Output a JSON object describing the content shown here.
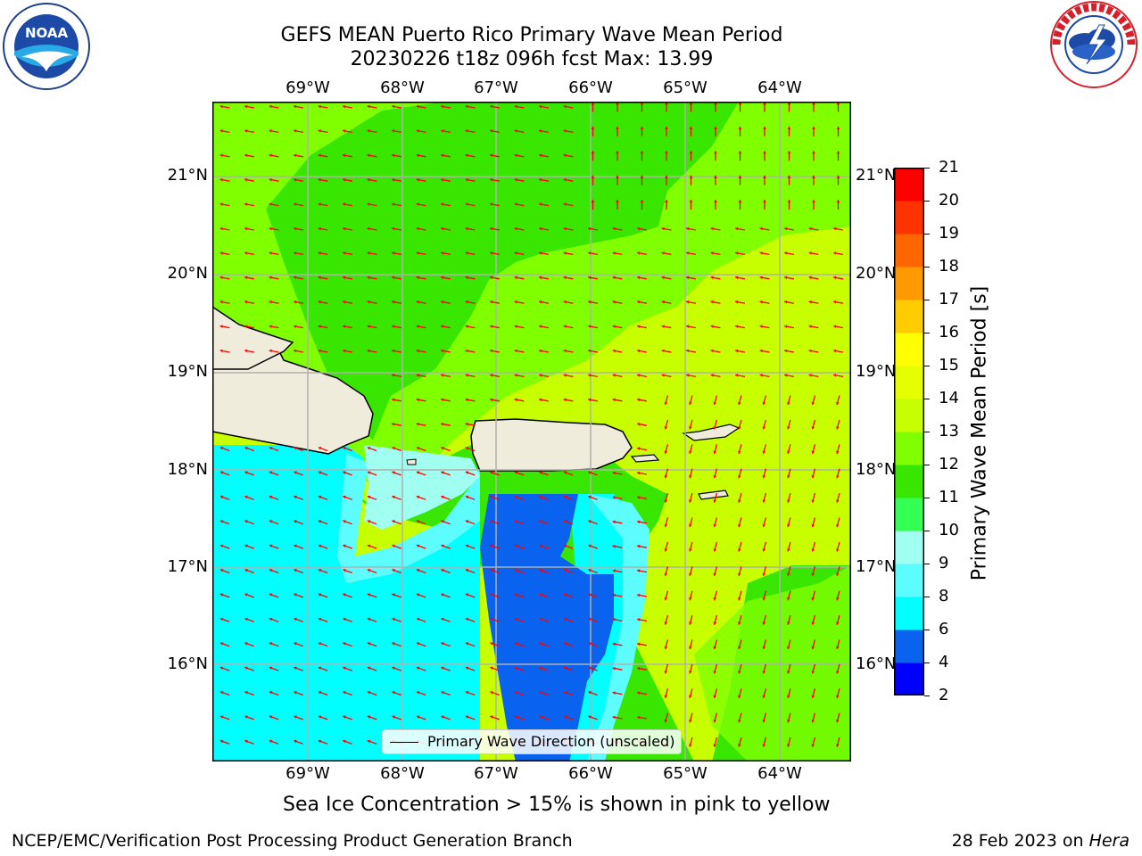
{
  "header": {
    "title_line1": "GEFS MEAN Puerto Rico Primary Wave Mean Period",
    "title_line2": "20230226 t18z 096h fcst   Max: 13.99"
  },
  "logos": {
    "left": {
      "text": "NOAA",
      "ring_text": "NATIONAL OCEANIC AND ATMOSPHERIC ADMINISTRATION · U.S. DEPARTMENT OF COMMERCE"
    },
    "right": {
      "ring_text": "NATIONAL WEATHER SERVICE"
    }
  },
  "map": {
    "lon_labels": [
      "69°W",
      "68°W",
      "67°W",
      "66°W",
      "65°W",
      "64°W"
    ],
    "lat_labels": [
      "21°N",
      "20°N",
      "19°N",
      "18°N",
      "17°N",
      "16°N"
    ],
    "legend_label": "Primary Wave Direction (unscaled)",
    "arrow_color": "#ff0000",
    "land_color": "#efecdc"
  },
  "colorbar": {
    "label": "Primary Wave Mean Period [s]",
    "ticks": [
      "21",
      "20",
      "19",
      "18",
      "17",
      "16",
      "15",
      "14",
      "13",
      "12",
      "11",
      "10",
      "9",
      "8",
      "6",
      "4",
      "2"
    ],
    "colors": [
      "#0000ff",
      "#0a63ee",
      "#00ffff",
      "#5cfcff",
      "#a0fff0",
      "#33ff55",
      "#39e600",
      "#80ff00",
      "#c8ff00",
      "#e6ff00",
      "#ffff00",
      "#ffcc00",
      "#ff9900",
      "#ff6600",
      "#ff3300",
      "#ff0000"
    ]
  },
  "note": "Sea Ice Concentration > 15% is shown in pink to yellow",
  "footer": {
    "left": "NCEP/EMC/Verification Post Processing Product Generation Branch",
    "right_date": "28 Feb 2023 on ",
    "right_host": "Hera"
  }
}
